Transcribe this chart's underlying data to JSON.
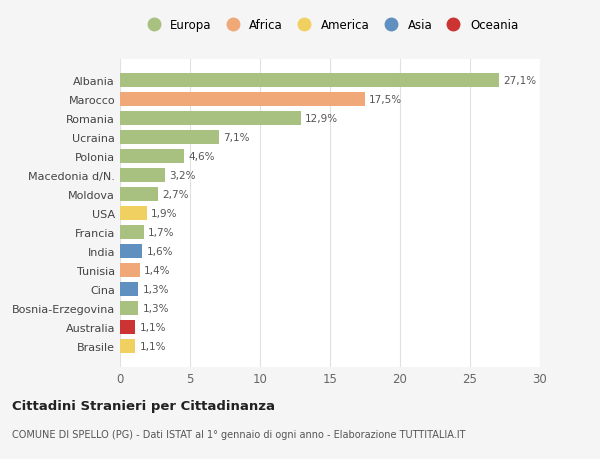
{
  "categories": [
    "Albania",
    "Marocco",
    "Romania",
    "Ucraina",
    "Polonia",
    "Macedonia d/N.",
    "Moldova",
    "USA",
    "Francia",
    "India",
    "Tunisia",
    "Cina",
    "Bosnia-Erzegovina",
    "Australia",
    "Brasile"
  ],
  "values": [
    27.1,
    17.5,
    12.9,
    7.1,
    4.6,
    3.2,
    2.7,
    1.9,
    1.7,
    1.6,
    1.4,
    1.3,
    1.3,
    1.1,
    1.1
  ],
  "labels": [
    "27,1%",
    "17,5%",
    "12,9%",
    "7,1%",
    "4,6%",
    "3,2%",
    "2,7%",
    "1,9%",
    "1,7%",
    "1,6%",
    "1,4%",
    "1,3%",
    "1,3%",
    "1,1%",
    "1,1%"
  ],
  "colors": [
    "#a8c080",
    "#f0a878",
    "#a8c080",
    "#a8c080",
    "#a8c080",
    "#a8c080",
    "#a8c080",
    "#f0d060",
    "#a8c080",
    "#6090c0",
    "#f0a878",
    "#6090c0",
    "#a8c080",
    "#cc3333",
    "#f0d060"
  ],
  "continent_colors": {
    "Europa": "#a8c080",
    "Africa": "#f0a878",
    "America": "#f0d060",
    "Asia": "#6090c0",
    "Oceania": "#cc3333"
  },
  "title": "Cittadini Stranieri per Cittadinanza",
  "subtitle": "COMUNE DI SPELLO (PG) - Dati ISTAT al 1° gennaio di ogni anno - Elaborazione TUTTITALIA.IT",
  "xlim": [
    0,
    30
  ],
  "xticks": [
    0,
    5,
    10,
    15,
    20,
    25,
    30
  ],
  "bg_color": "#f5f5f5",
  "plot_bg_color": "#ffffff",
  "grid_color": "#e0e0e0"
}
